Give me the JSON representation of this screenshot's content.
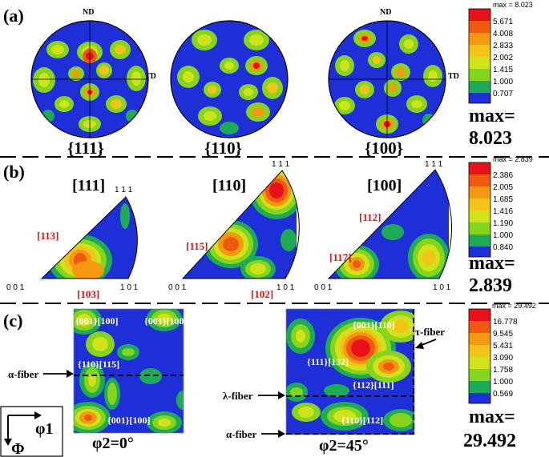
{
  "panels": {
    "a": {
      "label": "(a)",
      "axis_nd": "ND",
      "axis_td": "TD",
      "poles": [
        "{111}",
        "{110}",
        "{100}"
      ],
      "legend": {
        "header": "max = 8.023",
        "levels": [
          "5.671",
          "4.008",
          "2.833",
          "2.002",
          "1.415",
          "1.000",
          "0.707"
        ],
        "max_label": "max=",
        "max_value": "8.023"
      }
    },
    "b": {
      "label": "(b)",
      "directions": [
        "[111]",
        "[110]",
        "[100]"
      ],
      "corner_top": "1 1 1",
      "corner_left": "0 0 1",
      "corner_right": "1 0 1",
      "annotations": [
        [
          "[113]",
          "[103]"
        ],
        [
          "[115]",
          "[102]"
        ],
        [
          "[112]",
          "[117]"
        ]
      ],
      "legend": {
        "header": "max = 2.839",
        "levels": [
          "2.386",
          "2.005",
          "1.685",
          "1.416",
          "1.190",
          "1.000",
          "0.840"
        ],
        "max_label": "max=",
        "max_value": "2.839"
      }
    },
    "c": {
      "label": "(c)",
      "sections": [
        "φ2=0°",
        "φ2=45°"
      ],
      "labels_left": [
        "{001}[100]",
        "{001}[100]",
        "{110}[115]",
        "{001}[100]"
      ],
      "labels_right": [
        "{001}[110]",
        "{111}[132]",
        "{112}[111]",
        "{110}[112]"
      ],
      "fibers": {
        "alpha": "α-fiber",
        "lambda": "λ-fiber",
        "tau": "τ-fiber"
      },
      "axes": {
        "phi1": "φ1",
        "Phi": "Φ"
      },
      "legend": {
        "header": "max = 29.492",
        "levels": [
          "16.778",
          "9.545",
          "5.431",
          "3.090",
          "1.758",
          "1.000",
          "0.569"
        ],
        "max_label": "max=",
        "max_value": "29.492"
      }
    }
  },
  "colors": {
    "scale": [
      "#e8101a",
      "#f05a10",
      "#f59a10",
      "#f2c318",
      "#cfe21a",
      "#86d41b",
      "#1faa55",
      "#1f2fd8"
    ],
    "background": "#1f2fd8"
  }
}
